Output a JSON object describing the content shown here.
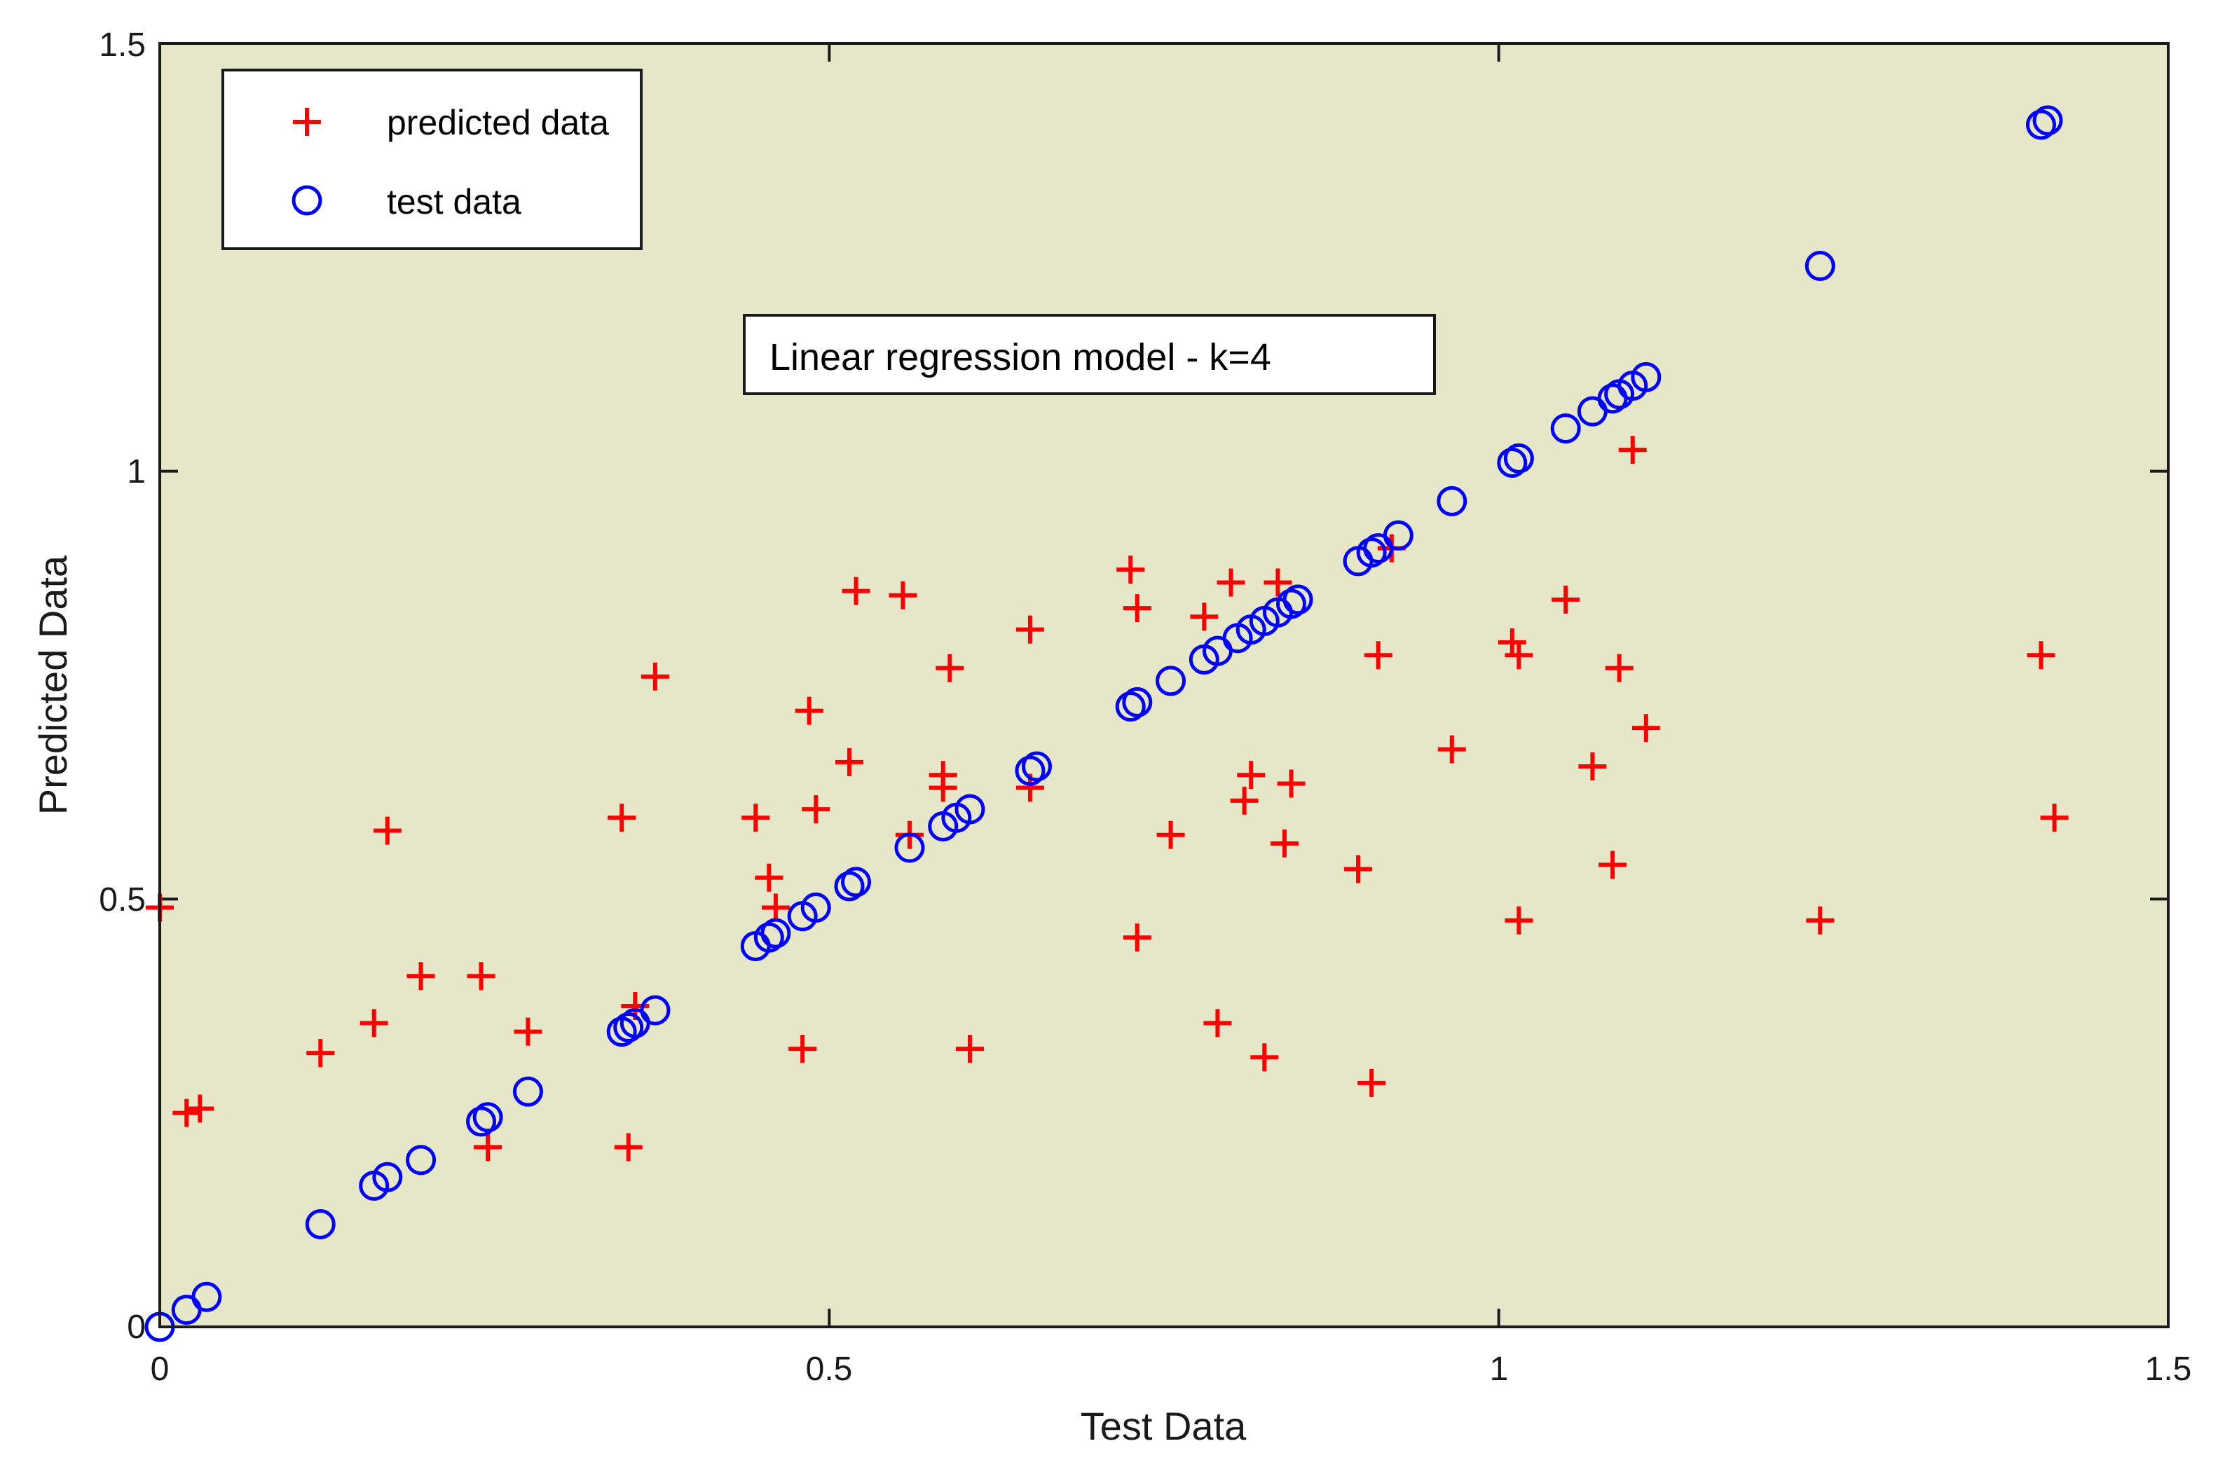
{
  "chart_data": {
    "type": "scatter",
    "title": "",
    "xlabel": "Test Data",
    "ylabel": "Predicted Data",
    "xlim": [
      0,
      1.5
    ],
    "ylim": [
      0,
      1.5
    ],
    "xticks": [
      "0",
      "0.5",
      "1",
      "1.5"
    ],
    "yticks": [
      "0",
      "0.5",
      "1",
      "1.5"
    ],
    "grid": false,
    "legend_position": "top-left",
    "plot_background": "#e6e6c8",
    "annotation": "Linear regression model - k=4",
    "series": [
      {
        "name": "predicted data",
        "marker": "plus",
        "color": "#ff0000",
        "points": [
          [
            0.0,
            0.49
          ],
          [
            0.02,
            0.25
          ],
          [
            0.03,
            0.255
          ],
          [
            0.12,
            0.32
          ],
          [
            0.16,
            0.355
          ],
          [
            0.17,
            0.58
          ],
          [
            0.195,
            0.41
          ],
          [
            0.24,
            0.41
          ],
          [
            0.245,
            0.21
          ],
          [
            0.275,
            0.345
          ],
          [
            0.345,
            0.595
          ],
          [
            0.35,
            0.21
          ],
          [
            0.355,
            0.375
          ],
          [
            0.37,
            0.76
          ],
          [
            0.445,
            0.595
          ],
          [
            0.455,
            0.525
          ],
          [
            0.46,
            0.49
          ],
          [
            0.48,
            0.325
          ],
          [
            0.485,
            0.72
          ],
          [
            0.49,
            0.605
          ],
          [
            0.515,
            0.66
          ],
          [
            0.52,
            0.86
          ],
          [
            0.555,
            0.855
          ],
          [
            0.56,
            0.575
          ],
          [
            0.585,
            0.645
          ],
          [
            0.585,
            0.63
          ],
          [
            0.59,
            0.77
          ],
          [
            0.605,
            0.325
          ],
          [
            0.65,
            0.63
          ],
          [
            0.65,
            0.815
          ],
          [
            0.725,
            0.885
          ],
          [
            0.73,
            0.455
          ],
          [
            0.73,
            0.84
          ],
          [
            0.755,
            0.575
          ],
          [
            0.78,
            0.83
          ],
          [
            0.79,
            0.355
          ],
          [
            0.8,
            0.87
          ],
          [
            0.81,
            0.615
          ],
          [
            0.815,
            0.645
          ],
          [
            0.825,
            0.315
          ],
          [
            0.835,
            0.87
          ],
          [
            0.84,
            0.565
          ],
          [
            0.845,
            0.635
          ],
          [
            0.895,
            0.535
          ],
          [
            0.905,
            0.285
          ],
          [
            0.91,
            0.785
          ],
          [
            0.92,
            0.91
          ],
          [
            0.965,
            0.675
          ],
          [
            1.01,
            0.8
          ],
          [
            1.015,
            0.785
          ],
          [
            1.015,
            0.475
          ],
          [
            1.05,
            0.85
          ],
          [
            1.07,
            0.655
          ],
          [
            1.085,
            0.54
          ],
          [
            1.09,
            0.77
          ],
          [
            1.1,
            1.025
          ],
          [
            1.11,
            0.7
          ],
          [
            1.24,
            0.475
          ],
          [
            1.405,
            0.785
          ],
          [
            1.415,
            0.595
          ]
        ]
      },
      {
        "name": "test data",
        "marker": "circle",
        "color": "#0000ff",
        "points": [
          [
            0.0,
            0.0
          ],
          [
            0.02,
            0.02
          ],
          [
            0.035,
            0.035
          ],
          [
            0.12,
            0.12
          ],
          [
            0.16,
            0.165
          ],
          [
            0.17,
            0.175
          ],
          [
            0.195,
            0.195
          ],
          [
            0.24,
            0.24
          ],
          [
            0.245,
            0.245
          ],
          [
            0.275,
            0.275
          ],
          [
            0.345,
            0.345
          ],
          [
            0.35,
            0.35
          ],
          [
            0.355,
            0.355
          ],
          [
            0.37,
            0.37
          ],
          [
            0.445,
            0.445
          ],
          [
            0.455,
            0.455
          ],
          [
            0.46,
            0.46
          ],
          [
            0.48,
            0.48
          ],
          [
            0.49,
            0.49
          ],
          [
            0.515,
            0.515
          ],
          [
            0.52,
            0.52
          ],
          [
            0.56,
            0.56
          ],
          [
            0.585,
            0.585
          ],
          [
            0.595,
            0.595
          ],
          [
            0.605,
            0.605
          ],
          [
            0.65,
            0.65
          ],
          [
            0.655,
            0.655
          ],
          [
            0.725,
            0.725
          ],
          [
            0.73,
            0.73
          ],
          [
            0.755,
            0.755
          ],
          [
            0.78,
            0.78
          ],
          [
            0.79,
            0.79
          ],
          [
            0.805,
            0.805
          ],
          [
            0.815,
            0.815
          ],
          [
            0.825,
            0.825
          ],
          [
            0.835,
            0.835
          ],
          [
            0.845,
            0.845
          ],
          [
            0.85,
            0.85
          ],
          [
            0.895,
            0.895
          ],
          [
            0.905,
            0.905
          ],
          [
            0.91,
            0.91
          ],
          [
            0.925,
            0.925
          ],
          [
            0.965,
            0.965
          ],
          [
            1.01,
            1.01
          ],
          [
            1.015,
            1.015
          ],
          [
            1.05,
            1.05
          ],
          [
            1.07,
            1.07
          ],
          [
            1.085,
            1.085
          ],
          [
            1.09,
            1.09
          ],
          [
            1.1,
            1.1
          ],
          [
            1.11,
            1.11
          ],
          [
            1.24,
            1.24
          ],
          [
            1.405,
            1.405
          ],
          [
            1.41,
            1.41
          ]
        ]
      }
    ]
  }
}
